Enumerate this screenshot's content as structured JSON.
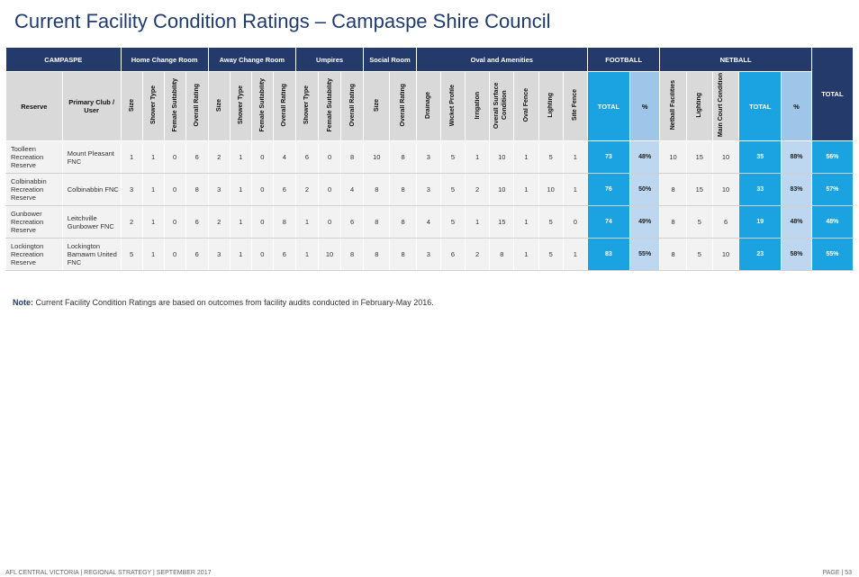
{
  "title": "Current Facility Condition Ratings – Campaspe Shire Council",
  "groups": {
    "campaspe": "CAMPASPE",
    "home": "Home Change Room",
    "away": "Away Change Room",
    "umpires": "Umpires",
    "social": "Social Room",
    "oval": "Oval and Amenities",
    "football": "FOOTBALL",
    "netball": "NETBALL",
    "total": "TOTAL"
  },
  "subheaders": {
    "reserve": "Reserve",
    "club": "Primary Club / User",
    "home": [
      "Size",
      "Shower Type",
      "Female Suitability",
      "Overall Rating"
    ],
    "away": [
      "Size",
      "Shower Type",
      "Female Suitability",
      "Overall Rating"
    ],
    "umpires": [
      "Shower Type",
      "Female Suitability",
      "Overall Rating"
    ],
    "social": [
      "Size",
      "Overall Rating"
    ],
    "oval": [
      "Drainage",
      "Wicket Profile",
      "Irrigation",
      "Overall Surface Condition",
      "Oval Fence",
      "Lighting",
      "Site Fence"
    ],
    "fb_total": "TOTAL",
    "fb_pct": "%",
    "netball": [
      "Netball Facilities",
      "Lighting",
      "Main Court Condition"
    ],
    "nb_total": "TOTAL",
    "nb_pct": "%"
  },
  "rows": [
    {
      "reserve": "Toolleen Recreation Reserve",
      "club": "Mount Pleasant FNC",
      "home": [
        "1",
        "1",
        "0",
        "6"
      ],
      "away": [
        "2",
        "1",
        "0",
        "4"
      ],
      "umpires": [
        "6",
        "0",
        "8"
      ],
      "social": [
        "10",
        "8"
      ],
      "oval": [
        "3",
        "5",
        "1",
        "10",
        "1",
        "5",
        "1"
      ],
      "fb_total": "73",
      "fb_pct": "48%",
      "netball": [
        "10",
        "15",
        "10"
      ],
      "nb_total": "35",
      "nb_pct": "88%",
      "total": "56%"
    },
    {
      "reserve": "Colbinabbin Recreation Reserve",
      "club": "Colbinabbin FNC",
      "home": [
        "3",
        "1",
        "0",
        "8"
      ],
      "away": [
        "3",
        "1",
        "0",
        "6"
      ],
      "umpires": [
        "2",
        "0",
        "4"
      ],
      "social": [
        "8",
        "8"
      ],
      "oval": [
        "3",
        "5",
        "2",
        "10",
        "1",
        "10",
        "1"
      ],
      "fb_total": "76",
      "fb_pct": "50%",
      "netball": [
        "8",
        "15",
        "10"
      ],
      "nb_total": "33",
      "nb_pct": "83%",
      "total": "57%"
    },
    {
      "reserve": "Gunbower Recreation Reserve",
      "club": "Leitchville Gunbower FNC",
      "home": [
        "2",
        "1",
        "0",
        "6"
      ],
      "away": [
        "2",
        "1",
        "0",
        "8"
      ],
      "umpires": [
        "1",
        "0",
        "6"
      ],
      "social": [
        "8",
        "8"
      ],
      "oval": [
        "4",
        "5",
        "1",
        "15",
        "1",
        "5",
        "0"
      ],
      "fb_total": "74",
      "fb_pct": "49%",
      "netball": [
        "8",
        "5",
        "6"
      ],
      "nb_total": "19",
      "nb_pct": "48%",
      "total": "48%"
    },
    {
      "reserve": "Lockington Recreation Reserve",
      "club": "Lockington Bamawm United FNC",
      "home": [
        "5",
        "1",
        "0",
        "6"
      ],
      "away": [
        "3",
        "1",
        "0",
        "6"
      ],
      "umpires": [
        "1",
        "10",
        "8"
      ],
      "social": [
        "8",
        "8"
      ],
      "oval": [
        "3",
        "6",
        "2",
        "8",
        "1",
        "5",
        "1"
      ],
      "fb_total": "83",
      "fb_pct": "55%",
      "netball": [
        "8",
        "5",
        "10"
      ],
      "nb_total": "23",
      "nb_pct": "58%",
      "total": "55%"
    }
  ],
  "note": {
    "label": "Note:",
    "text": " Current Facility Condition Ratings are based on outcomes from facility audits conducted in February-May 2016."
  },
  "footer": {
    "left": "AFL CENTRAL VICTORIA | REGIONAL STRATEGY | SEPTEMBER 2017",
    "right": "PAGE | 53"
  }
}
